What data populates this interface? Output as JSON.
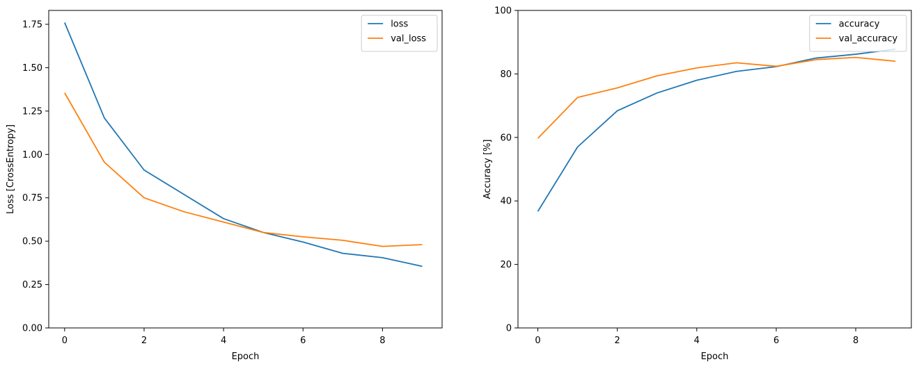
{
  "figure": {
    "background": "#ffffff",
    "frame_color": "#000000",
    "legend_border_color": "#cccccc",
    "legend_background": "#ffffff"
  },
  "chart_data": [
    {
      "type": "line",
      "title": "",
      "xlabel": "Epoch",
      "ylabel": "Loss [CrossEntropy]",
      "x": [
        0,
        1,
        2,
        3,
        4,
        5,
        6,
        7,
        8,
        9
      ],
      "series": [
        {
          "name": "loss",
          "color": "#1f77b4",
          "values": [
            1.76,
            1.21,
            0.91,
            0.77,
            0.63,
            0.55,
            0.495,
            0.43,
            0.405,
            0.355
          ]
        },
        {
          "name": "val_loss",
          "color": "#ff7f0e",
          "values": [
            1.355,
            0.955,
            0.75,
            0.67,
            0.61,
            0.55,
            0.525,
            0.505,
            0.47,
            0.48
          ]
        }
      ],
      "xlim": [
        -0.4,
        9.5
      ],
      "ylim": [
        0,
        1.83
      ],
      "xticks": {
        "values": [
          0,
          2,
          4,
          6,
          8
        ],
        "labels": [
          "0",
          "2",
          "4",
          "6",
          "8"
        ]
      },
      "yticks": {
        "values": [
          0,
          0.25,
          0.5,
          0.75,
          1.0,
          1.25,
          1.5,
          1.75
        ],
        "labels": [
          "0.00",
          "0.25",
          "0.50",
          "0.75",
          "1.00",
          "1.25",
          "1.50",
          "1.75"
        ]
      },
      "legend": {
        "location": "upper right",
        "entries": [
          "loss",
          "val_loss"
        ]
      },
      "grid": false
    },
    {
      "type": "line",
      "title": "",
      "xlabel": "Epoch",
      "ylabel": "Accuracy [%]",
      "x": [
        0,
        1,
        2,
        3,
        4,
        5,
        6,
        7,
        8,
        9
      ],
      "series": [
        {
          "name": "accuracy",
          "color": "#1f77b4",
          "values": [
            36.7,
            57.0,
            68.4,
            74.0,
            78.0,
            80.8,
            82.3,
            85.0,
            86.2,
            87.8
          ]
        },
        {
          "name": "val_accuracy",
          "color": "#ff7f0e",
          "values": [
            59.7,
            72.6,
            75.6,
            79.4,
            81.9,
            83.5,
            82.4,
            84.5,
            85.2,
            84.0
          ]
        }
      ],
      "xlim": [
        -0.5,
        9.4
      ],
      "ylim": [
        0,
        100
      ],
      "xticks": {
        "values": [
          0,
          2,
          4,
          6,
          8
        ],
        "labels": [
          "0",
          "2",
          "4",
          "6",
          "8"
        ]
      },
      "yticks": {
        "values": [
          0,
          20,
          40,
          60,
          80,
          100
        ],
        "labels": [
          "0",
          "20",
          "40",
          "60",
          "80",
          "100"
        ]
      },
      "legend": {
        "location": "upper right",
        "entries": [
          "accuracy",
          "val_accuracy"
        ]
      },
      "grid": false
    }
  ]
}
